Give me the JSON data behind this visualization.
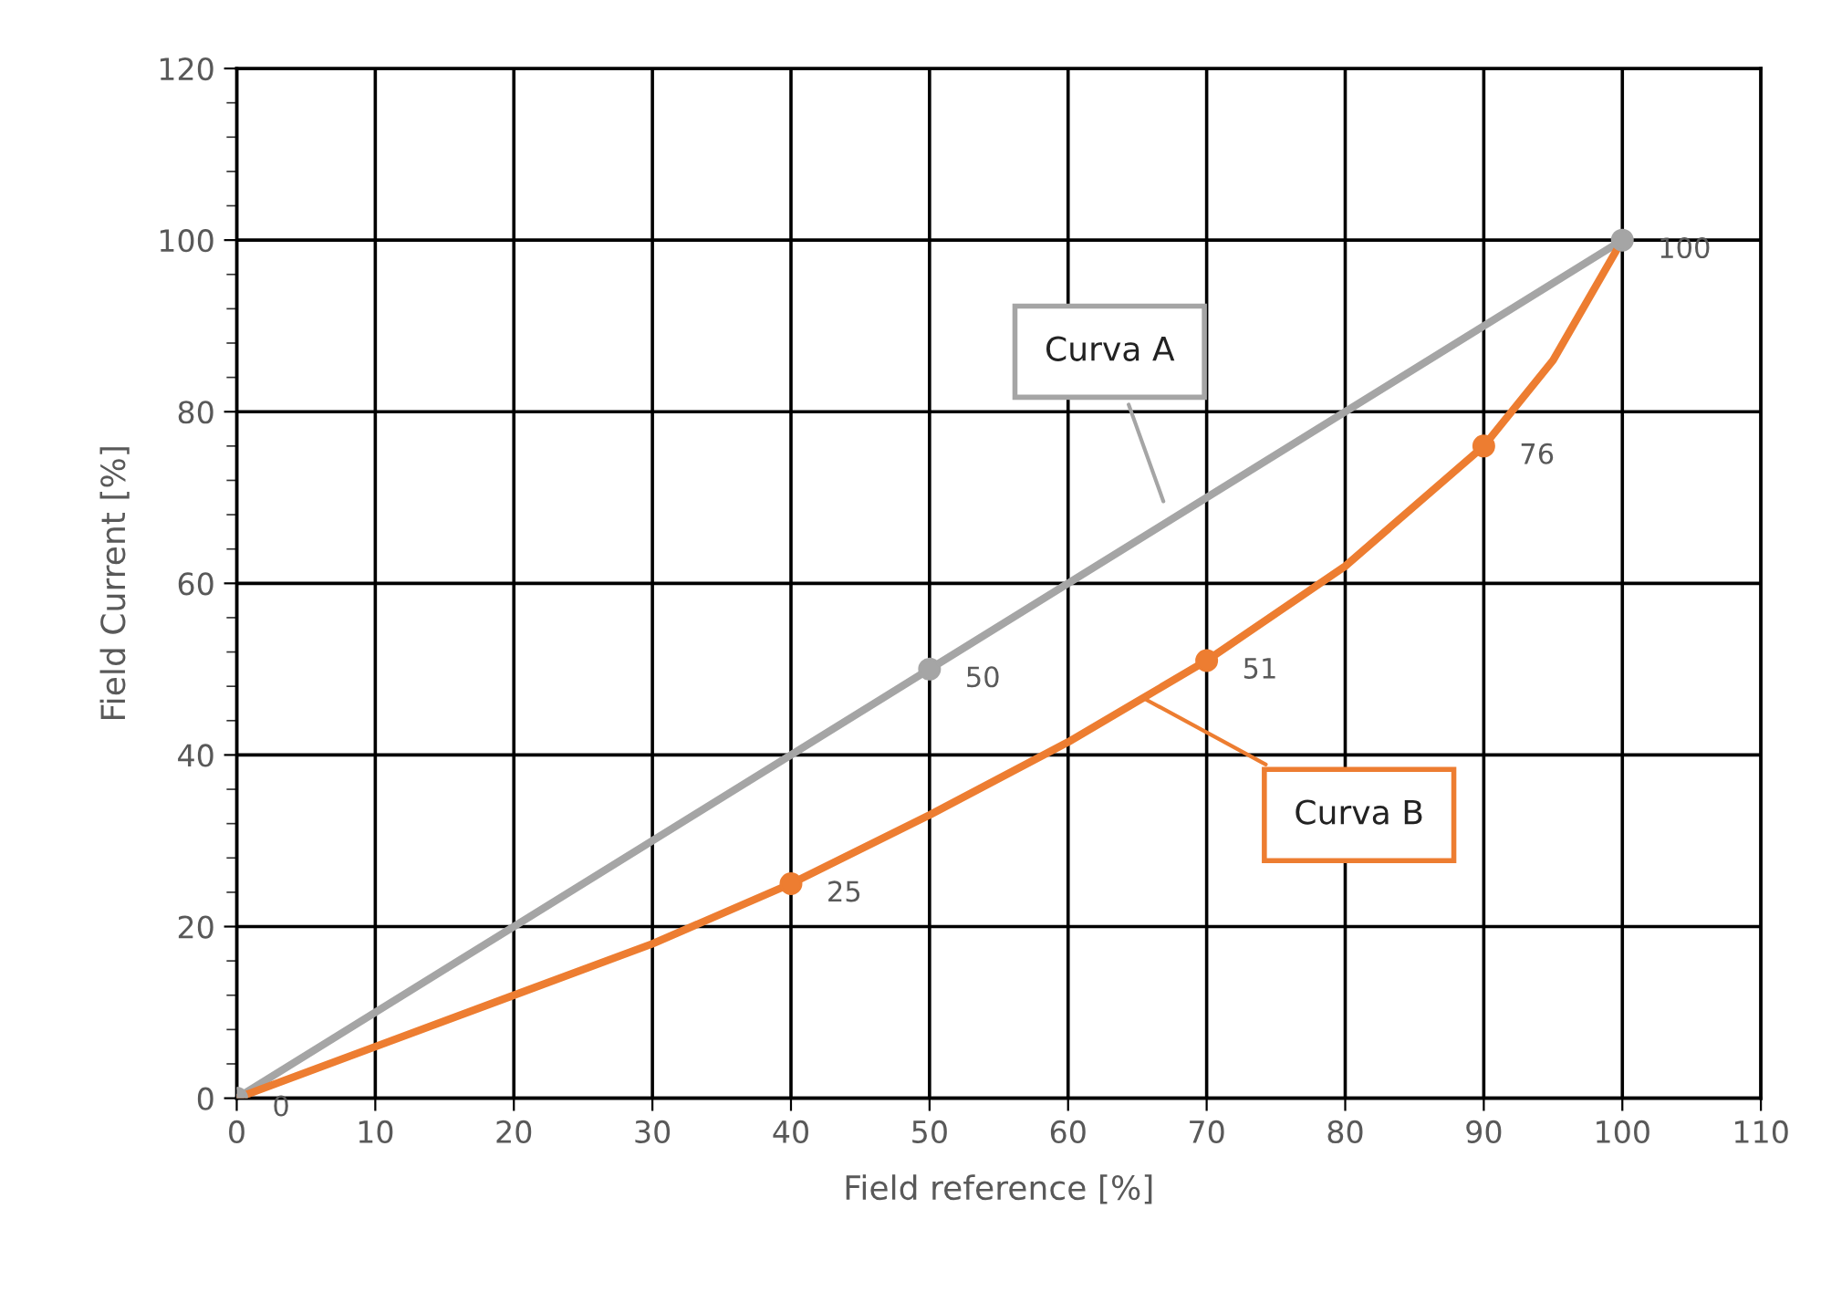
{
  "chart_data": {
    "type": "line",
    "xlabel": "Field reference [%]",
    "ylabel": "Field Current [%]",
    "xlim": [
      0,
      110
    ],
    "xticks": [
      0,
      10,
      20,
      30,
      40,
      50,
      60,
      70,
      80,
      90,
      100,
      110
    ],
    "ylim": [
      0,
      120
    ],
    "yticks": [
      0,
      20,
      40,
      60,
      80,
      100,
      120
    ],
    "grid": true,
    "legend": false,
    "line_style": "solid",
    "series": [
      {
        "name": "Curva A",
        "color": "#a5a5a5",
        "marker": "circle",
        "x": [
          0,
          50,
          100
        ],
        "values": [
          0,
          50,
          100
        ],
        "value_labels": [
          "0",
          "50",
          "100"
        ]
      },
      {
        "name": "Curva B",
        "color": "#ed7d31",
        "x": [
          0,
          10,
          20,
          30,
          40,
          50,
          60,
          70,
          80,
          90,
          95,
          100
        ],
        "values": [
          0,
          6,
          12,
          18,
          25,
          33,
          41.5,
          51,
          62,
          76,
          86,
          100
        ],
        "marker": "none"
      },
      {
        "type": "scatter",
        "color": "#ed7d31",
        "marker": "circle",
        "x": [
          40,
          70,
          90
        ],
        "values": [
          25,
          51,
          76
        ],
        "value_labels": [
          "25",
          "51",
          "76"
        ]
      }
    ]
  }
}
